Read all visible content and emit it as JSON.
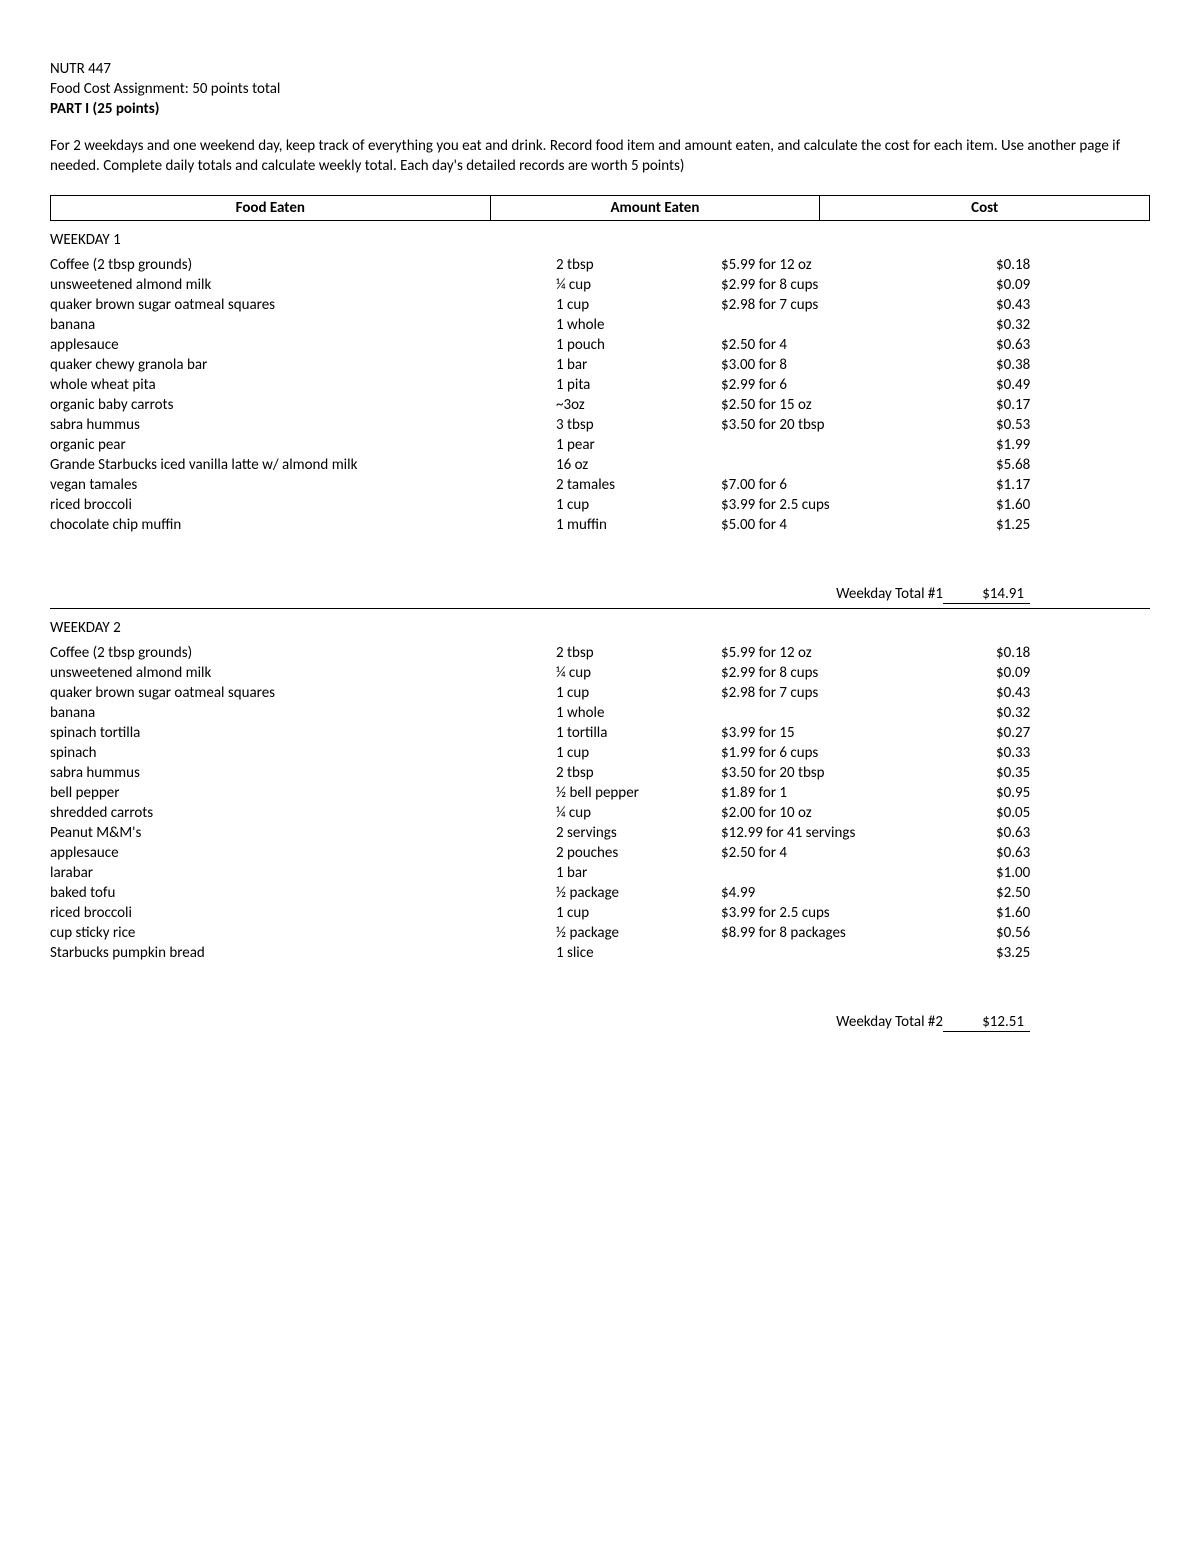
{
  "header": {
    "course": "NUTR 447",
    "assignment": "Food Cost Assignment: 50 points total",
    "part": "PART I (25 points)"
  },
  "instructions": "For 2 weekdays and one weekend day, keep track of everything you eat and drink. Record food item and amount eaten, and calculate the cost for each item. Use another page if needed. Complete daily totals and calculate weekly total. Each day's detailed records are worth 5 points)",
  "columns": {
    "food": "Food Eaten",
    "amount": "Amount Eaten",
    "cost": "Cost"
  },
  "weekday1": {
    "title": "WEEKDAY 1",
    "total_label": "Weekday Total #1",
    "total_value": "$14.91",
    "rows": [
      {
        "food": "Coffee (2 tbsp grounds)",
        "amount": "2 tbsp",
        "price": "$5.99 for 12 oz",
        "cost": "$0.18"
      },
      {
        "food": "unsweetened almond milk",
        "amount": "¼ cup",
        "price": "$2.99 for 8 cups",
        "cost": "$0.09"
      },
      {
        "food": "quaker brown sugar oatmeal squares",
        "amount": "1 cup",
        "price": "$2.98 for 7 cups",
        "cost": "$0.43"
      },
      {
        "food": "banana",
        "amount": "1 whole",
        "price": "",
        "cost": "$0.32"
      },
      {
        "food": "applesauce",
        "amount": "1 pouch",
        "price": "$2.50 for 4",
        "cost": "$0.63"
      },
      {
        "food": "quaker chewy granola bar",
        "amount": "1 bar",
        "price": "$3.00 for 8",
        "cost": "$0.38"
      },
      {
        "food": "whole wheat pita",
        "amount": "1 pita",
        "price": "$2.99 for 6",
        "cost": "$0.49"
      },
      {
        "food": "organic baby carrots",
        "amount": "~3oz",
        "price": "$2.50 for 15 oz",
        "cost": "$0.17"
      },
      {
        "food": "sabra hummus",
        "amount": "3 tbsp",
        "price": "$3.50 for 20 tbsp",
        "cost": "$0.53"
      },
      {
        "food": "organic pear",
        "amount": "1 pear",
        "price": "",
        "cost": "$1.99"
      },
      {
        "food": "Grande Starbucks iced vanilla latte w/ almond milk",
        "amount": "16 oz",
        "price": "",
        "cost": "$5.68"
      },
      {
        "food": "vegan tamales",
        "amount": "2 tamales",
        "price": "$7.00 for 6",
        "cost": "$1.17"
      },
      {
        "food": "riced broccoli",
        "amount": "1 cup",
        "price": "$3.99 for 2.5 cups",
        "cost": "$1.60"
      },
      {
        "food": "chocolate chip muffin",
        "amount": "1 muffin",
        "price": "$5.00 for 4",
        "cost": "$1.25"
      }
    ]
  },
  "weekday2": {
    "title": "WEEKDAY 2",
    "total_label": "Weekday Total #2",
    "total_value": "$12.51",
    "rows": [
      {
        "food": "Coffee (2 tbsp grounds)",
        "amount": "2 tbsp",
        "price": "$5.99 for 12 oz",
        "cost": "$0.18"
      },
      {
        "food": "unsweetened almond milk",
        "amount": "¼ cup",
        "price": "$2.99 for 8 cups",
        "cost": "$0.09"
      },
      {
        "food": "quaker brown sugar oatmeal squares",
        "amount": "1 cup",
        "price": "$2.98 for 7 cups",
        "cost": "$0.43"
      },
      {
        "food": "banana",
        "amount": "1 whole",
        "price": "",
        "cost": "$0.32"
      },
      {
        "food": "spinach tortilla",
        "amount": "1 tortilla",
        "price": "$3.99 for 15",
        "cost": "$0.27"
      },
      {
        "food": "spinach",
        "amount": "1 cup",
        "price": "$1.99 for 6 cups",
        "cost": "$0.33"
      },
      {
        "food": "sabra hummus",
        "amount": "2 tbsp",
        "price": "$3.50 for 20 tbsp",
        "cost": "$0.35"
      },
      {
        "food": "bell pepper",
        "amount": "½ bell pepper",
        "price": "$1.89 for 1",
        "cost": "$0.95"
      },
      {
        "food": "shredded carrots",
        "amount": "¼ cup",
        "price": "$2.00 for 10 oz",
        "cost": "$0.05"
      },
      {
        "food": "Peanut M&M's",
        "amount": "2 servings",
        "price": "$12.99 for 41 servings",
        "cost": "$0.63"
      },
      {
        "food": "applesauce",
        "amount": "2 pouches",
        "price": "$2.50 for 4",
        "cost": "$0.63"
      },
      {
        "food": "larabar",
        "amount": "1 bar",
        "price": "",
        "cost": "$1.00"
      },
      {
        "food": "baked tofu",
        "amount": "½ package",
        "price": "$4.99",
        "cost": "$2.50"
      },
      {
        "food": "riced broccoli",
        "amount": "1 cup",
        "price": "$3.99 for 2.5 cups",
        "cost": "$1.60"
      },
      {
        "food": "cup sticky rice",
        "amount": "½ package",
        "price": "$8.99 for 8 packages",
        "cost": "$0.56"
      },
      {
        "food": "Starbucks pumpkin bread",
        "amount": "1 slice",
        "price": "",
        "cost": "$3.25"
      }
    ]
  }
}
